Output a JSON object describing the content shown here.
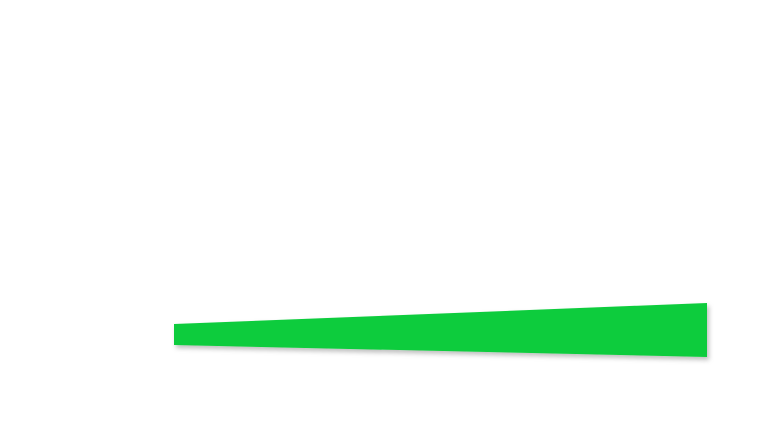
{
  "slider": {
    "fill_color": "#0ecc3c",
    "shadow_color": "#000000",
    "level_fraction": 1.0
  }
}
